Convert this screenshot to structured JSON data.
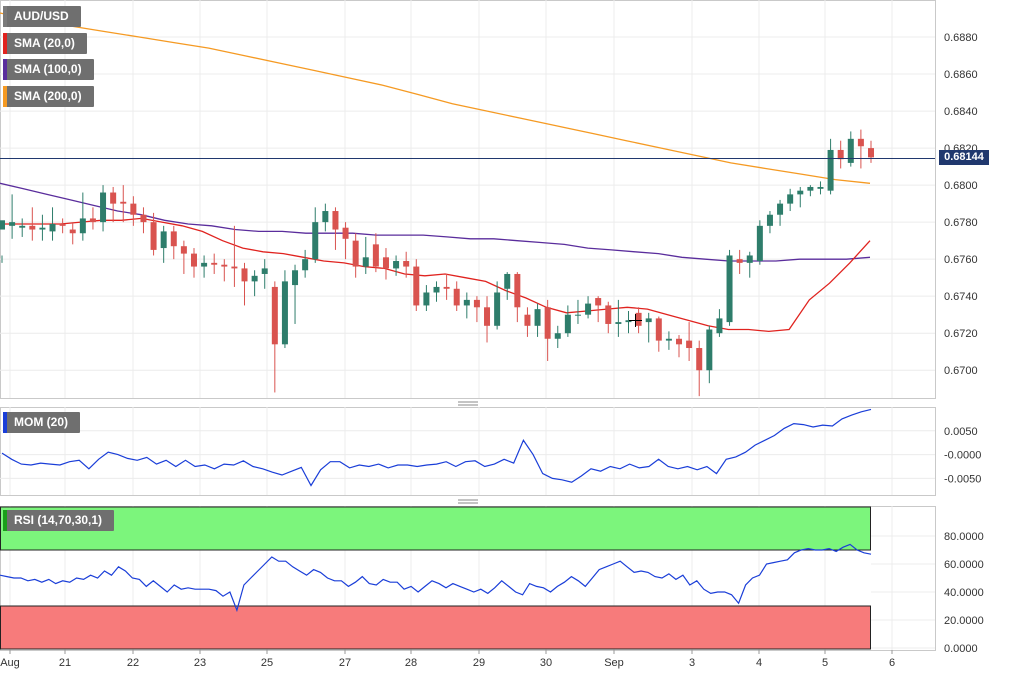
{
  "chart_data": {
    "type": "candlestick",
    "pair": "AUD/USD",
    "current_price_label": "0.68144",
    "current_price": 0.68144,
    "x_tick_labels": [
      "Aug",
      "21",
      "22",
      "23",
      "25",
      "27",
      "28",
      "29",
      "30",
      "Sep",
      "3",
      "4",
      "5",
      "6"
    ],
    "price_axis": {
      "ylim": [
        0.6685,
        0.69
      ],
      "ticks": [
        "0.6880",
        "0.6860",
        "0.6840",
        "0.6820",
        "0.6800",
        "0.6780",
        "0.6760",
        "0.6740",
        "0.6720",
        "0.6700"
      ]
    },
    "candles": [
      [
        0.6776,
        0.6781,
        0.6762,
        0.6758
      ],
      [
        0.6778,
        0.678,
        0.6795,
        0.6771
      ],
      [
        0.6777,
        0.6778,
        0.6782,
        0.6772
      ],
      [
        0.6778,
        0.6776,
        0.6788,
        0.677
      ],
      [
        0.6776,
        0.6777,
        0.6784,
        0.677
      ],
      [
        0.6775,
        0.6779,
        0.6788,
        0.677
      ],
      [
        0.6779,
        0.6778,
        0.6782,
        0.6774
      ],
      [
        0.6776,
        0.6774,
        0.678,
        0.6768
      ],
      [
        0.6774,
        0.6782,
        0.6796,
        0.677
      ],
      [
        0.6782,
        0.678,
        0.6788,
        0.6776
      ],
      [
        0.678,
        0.6796,
        0.68,
        0.6775
      ],
      [
        0.6796,
        0.679,
        0.6799,
        0.678
      ],
      [
        0.6791,
        0.679,
        0.68,
        0.678
      ],
      [
        0.679,
        0.6784,
        0.6794,
        0.6778
      ],
      [
        0.6784,
        0.678,
        0.6788,
        0.6774
      ],
      [
        0.678,
        0.6765,
        0.6785,
        0.6762
      ],
      [
        0.6766,
        0.6775,
        0.6778,
        0.6758
      ],
      [
        0.6775,
        0.6767,
        0.6778,
        0.676
      ],
      [
        0.6767,
        0.6763,
        0.677,
        0.6752
      ],
      [
        0.6763,
        0.6756,
        0.6766,
        0.675
      ],
      [
        0.6756,
        0.6758,
        0.6762,
        0.675
      ],
      [
        0.6758,
        0.6757,
        0.6763,
        0.6752
      ],
      [
        0.6757,
        0.6756,
        0.676,
        0.6748
      ],
      [
        0.6756,
        0.6755,
        0.6778,
        0.6745
      ],
      [
        0.6755,
        0.6748,
        0.6758,
        0.6735
      ],
      [
        0.6748,
        0.6751,
        0.6754,
        0.674
      ],
      [
        0.6752,
        0.6755,
        0.676,
        0.6744
      ],
      [
        0.6745,
        0.6714,
        0.6748,
        0.6688
      ],
      [
        0.6714,
        0.6748,
        0.6754,
        0.6712
      ],
      [
        0.6746,
        0.6754,
        0.6757,
        0.6725
      ],
      [
        0.6754,
        0.676,
        0.6765,
        0.675
      ],
      [
        0.676,
        0.678,
        0.6788,
        0.6758
      ],
      [
        0.678,
        0.6786,
        0.679,
        0.6775
      ],
      [
        0.6786,
        0.6776,
        0.6788,
        0.6765
      ],
      [
        0.6777,
        0.6771,
        0.678,
        0.676
      ],
      [
        0.677,
        0.6756,
        0.6774,
        0.675
      ],
      [
        0.6756,
        0.6761,
        0.6772,
        0.6752
      ],
      [
        0.6768,
        0.6756,
        0.6774,
        0.6753
      ],
      [
        0.6761,
        0.6755,
        0.6766,
        0.6749
      ],
      [
        0.6755,
        0.6759,
        0.6762,
        0.6751
      ],
      [
        0.6759,
        0.6756,
        0.6764,
        0.675
      ],
      [
        0.6756,
        0.6735,
        0.676,
        0.6732
      ],
      [
        0.6735,
        0.6742,
        0.6746,
        0.6732
      ],
      [
        0.6742,
        0.6745,
        0.6748,
        0.6737
      ],
      [
        0.6745,
        0.6744,
        0.6752,
        0.6738
      ],
      [
        0.6744,
        0.6735,
        0.6748,
        0.6732
      ],
      [
        0.6735,
        0.6738,
        0.6742,
        0.6728
      ],
      [
        0.6738,
        0.6734,
        0.674,
        0.6726
      ],
      [
        0.6734,
        0.6724,
        0.674,
        0.6715
      ],
      [
        0.6724,
        0.6742,
        0.6748,
        0.6722
      ],
      [
        0.6744,
        0.6752,
        0.6753,
        0.6738
      ],
      [
        0.6752,
        0.6734,
        0.6753,
        0.6726
      ],
      [
        0.673,
        0.6724,
        0.6734,
        0.6718
      ],
      [
        0.6724,
        0.6733,
        0.6736,
        0.6718
      ],
      [
        0.6734,
        0.6717,
        0.6738,
        0.6705
      ],
      [
        0.6717,
        0.672,
        0.6724,
        0.6712
      ],
      [
        0.672,
        0.673,
        0.6735,
        0.6718
      ],
      [
        0.673,
        0.673,
        0.6738,
        0.6725
      ],
      [
        0.673,
        0.6736,
        0.674,
        0.6728
      ],
      [
        0.6739,
        0.6735,
        0.674,
        0.6726
      ],
      [
        0.6735,
        0.6725,
        0.6737,
        0.672
      ],
      [
        0.6725,
        0.6726,
        0.6738,
        0.6718
      ],
      [
        0.6726,
        0.6727,
        0.6732,
        0.672
      ],
      [
        0.6731,
        0.6724,
        0.6734,
        0.672
      ],
      [
        0.6726,
        0.6728,
        0.6731,
        0.6715
      ],
      [
        0.6728,
        0.6716,
        0.6729,
        0.671
      ],
      [
        0.6716,
        0.6717,
        0.6721,
        0.6711
      ],
      [
        0.6717,
        0.6714,
        0.6719,
        0.6707
      ],
      [
        0.6716,
        0.6712,
        0.6726,
        0.6705
      ],
      [
        0.6712,
        0.67,
        0.6716,
        0.6686
      ],
      [
        0.67,
        0.6722,
        0.6724,
        0.6693
      ],
      [
        0.672,
        0.6728,
        0.6733,
        0.6718
      ],
      [
        0.6726,
        0.6762,
        0.6765,
        0.6724
      ],
      [
        0.676,
        0.6758,
        0.6765,
        0.6752
      ],
      [
        0.6758,
        0.6762,
        0.6764,
        0.675
      ],
      [
        0.6759,
        0.6778,
        0.6781,
        0.6757
      ],
      [
        0.6778,
        0.6784,
        0.6786,
        0.6774
      ],
      [
        0.6784,
        0.679,
        0.6792,
        0.6778
      ],
      [
        0.679,
        0.6795,
        0.6798,
        0.6786
      ],
      [
        0.6795,
        0.6797,
        0.6799,
        0.6788
      ],
      [
        0.6797,
        0.6799,
        0.68,
        0.6794
      ],
      [
        0.6798,
        0.6799,
        0.6802,
        0.6795
      ],
      [
        0.6797,
        0.6819,
        0.6825,
        0.6795
      ],
      [
        0.6819,
        0.6814,
        0.6824,
        0.6809
      ],
      [
        0.6812,
        0.6825,
        0.6829,
        0.681
      ],
      [
        0.6825,
        0.6821,
        0.683,
        0.6809
      ],
      [
        0.682,
        0.6815,
        0.6824,
        0.6812
      ]
    ],
    "sma_20": [
      0.6779,
      0.6779,
      0.6779,
      0.6779,
      0.678,
      0.6781,
      0.6781,
      0.6782,
      0.678,
      0.6778,
      0.6775,
      0.677,
      0.6766,
      0.6764,
      0.6763,
      0.6761,
      0.6759,
      0.6758,
      0.6756,
      0.6755,
      0.6752,
      0.6751,
      0.6752,
      0.675,
      0.6748,
      0.6743,
      0.6739,
      0.6734,
      0.6731,
      0.6732,
      0.6733,
      0.6734,
      0.6733,
      0.673,
      0.6727,
      0.6724,
      0.6722,
      0.6722,
      0.6721,
      0.6722,
      0.6738,
      0.6747,
      0.6758,
      0.677
    ],
    "sma_100": [
      0.6801,
      0.6798,
      0.6795,
      0.6792,
      0.6789,
      0.6786,
      0.6784,
      0.6781,
      0.6779,
      0.6778,
      0.6776,
      0.6775,
      0.6775,
      0.6774,
      0.6774,
      0.6774,
      0.6773,
      0.6773,
      0.6773,
      0.6772,
      0.6771,
      0.6771,
      0.677,
      0.6769,
      0.6768,
      0.6766,
      0.6765,
      0.6764,
      0.6763,
      0.6761,
      0.676,
      0.6759,
      0.6759,
      0.6759,
      0.676,
      0.676,
      0.676,
      0.6761
    ],
    "sma_200": [
      0.6893,
      0.6889,
      0.6886,
      0.6883,
      0.688,
      0.6877,
      0.6874,
      0.687,
      0.6866,
      0.6862,
      0.6858,
      0.6854,
      0.6849,
      0.6844,
      0.684,
      0.6836,
      0.6832,
      0.6828,
      0.6824,
      0.682,
      0.6816,
      0.6812,
      0.6809,
      0.6806,
      0.6803,
      0.6801
    ],
    "momentum": {
      "label": "MOM (20)",
      "ylim": [
        -0.0085,
        0.01
      ],
      "ticks": [
        "0.0050",
        "-0.0000",
        "-0.0050"
      ],
      "values": [
        0.0003,
        -0.001,
        -0.002,
        -0.0022,
        -0.0018,
        -0.002,
        -0.0022,
        -0.0015,
        -0.0012,
        -0.003,
        -0.001,
        0.0005,
        0.0,
        -0.0008,
        -0.0012,
        -0.0006,
        -0.002,
        -0.0012,
        -0.0025,
        -0.0012,
        -0.0025,
        -0.0022,
        -0.003,
        -0.002,
        -0.0022,
        -0.0013,
        -0.0025,
        -0.003,
        -0.0037,
        -0.0043,
        -0.0035,
        -0.0027,
        -0.0065,
        -0.0032,
        -0.0015,
        -0.0015,
        -0.0028,
        -0.0022,
        -0.0025,
        -0.002,
        -0.0028,
        -0.0022,
        -0.0022,
        -0.0025,
        -0.0022,
        -0.002,
        -0.0015,
        -0.0025,
        -0.0015,
        -0.0013,
        -0.0025,
        -0.002,
        -0.001,
        -0.0018,
        0.003,
        0.0,
        -0.004,
        -0.005,
        -0.0053,
        -0.0058,
        -0.0045,
        -0.003,
        -0.0035,
        -0.0025,
        -0.003,
        -0.002,
        -0.0028,
        -0.0025,
        -0.001,
        -0.0025,
        -0.003,
        -0.0025,
        -0.0032,
        -0.0025,
        -0.004,
        -0.001,
        -0.0005,
        0.0005,
        0.002,
        0.003,
        0.004,
        0.0055,
        0.0065,
        0.0063,
        0.0058,
        0.0062,
        0.006,
        0.0075,
        0.0083,
        0.009,
        0.0095
      ]
    },
    "rsi": {
      "label": "RSI (14,70,30,1)",
      "ylim": [
        0,
        100
      ],
      "ticks": [
        "80.0000",
        "60.0000",
        "40.0000",
        "20.0000",
        "0.0000"
      ],
      "overbought": 70,
      "oversold": 30,
      "values": [
        52,
        51,
        50,
        50,
        48,
        49,
        47,
        49,
        46,
        48,
        47,
        50,
        49,
        52,
        50,
        55,
        52,
        58,
        55,
        50,
        49,
        44,
        48,
        44,
        40,
        45,
        42,
        43,
        42,
        42,
        42,
        41,
        37,
        40,
        27,
        45,
        50,
        55,
        60,
        65,
        62,
        62,
        58,
        55,
        52,
        56,
        54,
        50,
        48,
        48,
        44,
        47,
        51,
        46,
        45,
        49,
        47,
        47,
        42,
        44,
        40,
        44,
        48,
        46,
        43,
        46,
        44,
        42,
        40,
        42,
        39,
        43,
        48,
        44,
        40,
        38,
        46,
        44,
        43,
        40,
        44,
        47,
        51,
        48,
        44,
        50,
        56,
        58,
        60,
        62,
        58,
        54,
        55,
        54,
        51,
        50,
        53,
        49,
        52,
        45,
        48,
        42,
        39,
        40,
        40,
        38,
        32,
        45,
        50,
        52,
        60,
        61,
        62,
        63,
        68,
        70,
        71,
        70,
        70,
        71,
        69,
        72,
        74,
        70,
        68,
        67
      ]
    }
  },
  "legends": {
    "pair": "AUD/USD",
    "sma20": "SMA (20,0)",
    "sma100": "SMA (100,0)",
    "sma200": "SMA (200,0)"
  },
  "colors": {
    "bull": "#2e7d6b",
    "bear": "#d9534f",
    "sma20": "#e0231f",
    "sma100": "#5a2d9c",
    "sma200": "#f59a23",
    "indicator": "#1a3ed8",
    "price_line": "#20386e",
    "rsi_overbought": "#7cf57c",
    "rsi_oversold": "#f77b7b"
  }
}
